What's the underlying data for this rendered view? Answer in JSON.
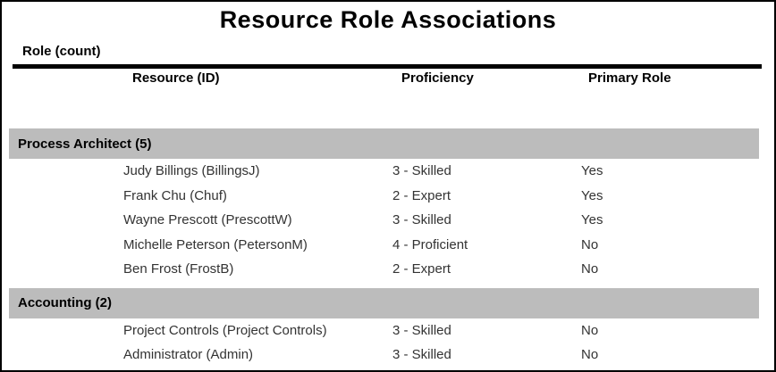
{
  "report": {
    "title": "Resource Role Associations",
    "group_column_header": "Role (count)",
    "columns": [
      "Resource (ID)",
      "Proficiency",
      "Primary Role"
    ],
    "groups": [
      {
        "name": "Process Architect (5)",
        "rows": [
          {
            "resource": "Judy Billings (BillingsJ)",
            "proficiency": "3 - Skilled",
            "primary_role": "Yes"
          },
          {
            "resource": "Frank Chu (Chuf)",
            "proficiency": "2 - Expert",
            "primary_role": "Yes"
          },
          {
            "resource": "Wayne Prescott (PrescottW)",
            "proficiency": "3 - Skilled",
            "primary_role": "Yes"
          },
          {
            "resource": "Michelle Peterson (PetersonM)",
            "proficiency": "4 - Proficient",
            "primary_role": "No"
          },
          {
            "resource": "Ben Frost (FrostB)",
            "proficiency": "2 - Expert",
            "primary_role": "No"
          }
        ]
      },
      {
        "name": "Accounting (2)",
        "rows": [
          {
            "resource": "Project Controls (Project Controls)",
            "proficiency": "3 - Skilled",
            "primary_role": "No"
          },
          {
            "resource": "Administrator (Admin)",
            "proficiency": "3 - Skilled",
            "primary_role": "No"
          }
        ]
      }
    ],
    "colors": {
      "group_band": "#bcbcbc",
      "rule": "#000000",
      "border": "#000000",
      "heading_text": "#000000",
      "body_text": "#333333",
      "background": "#ffffff"
    }
  }
}
